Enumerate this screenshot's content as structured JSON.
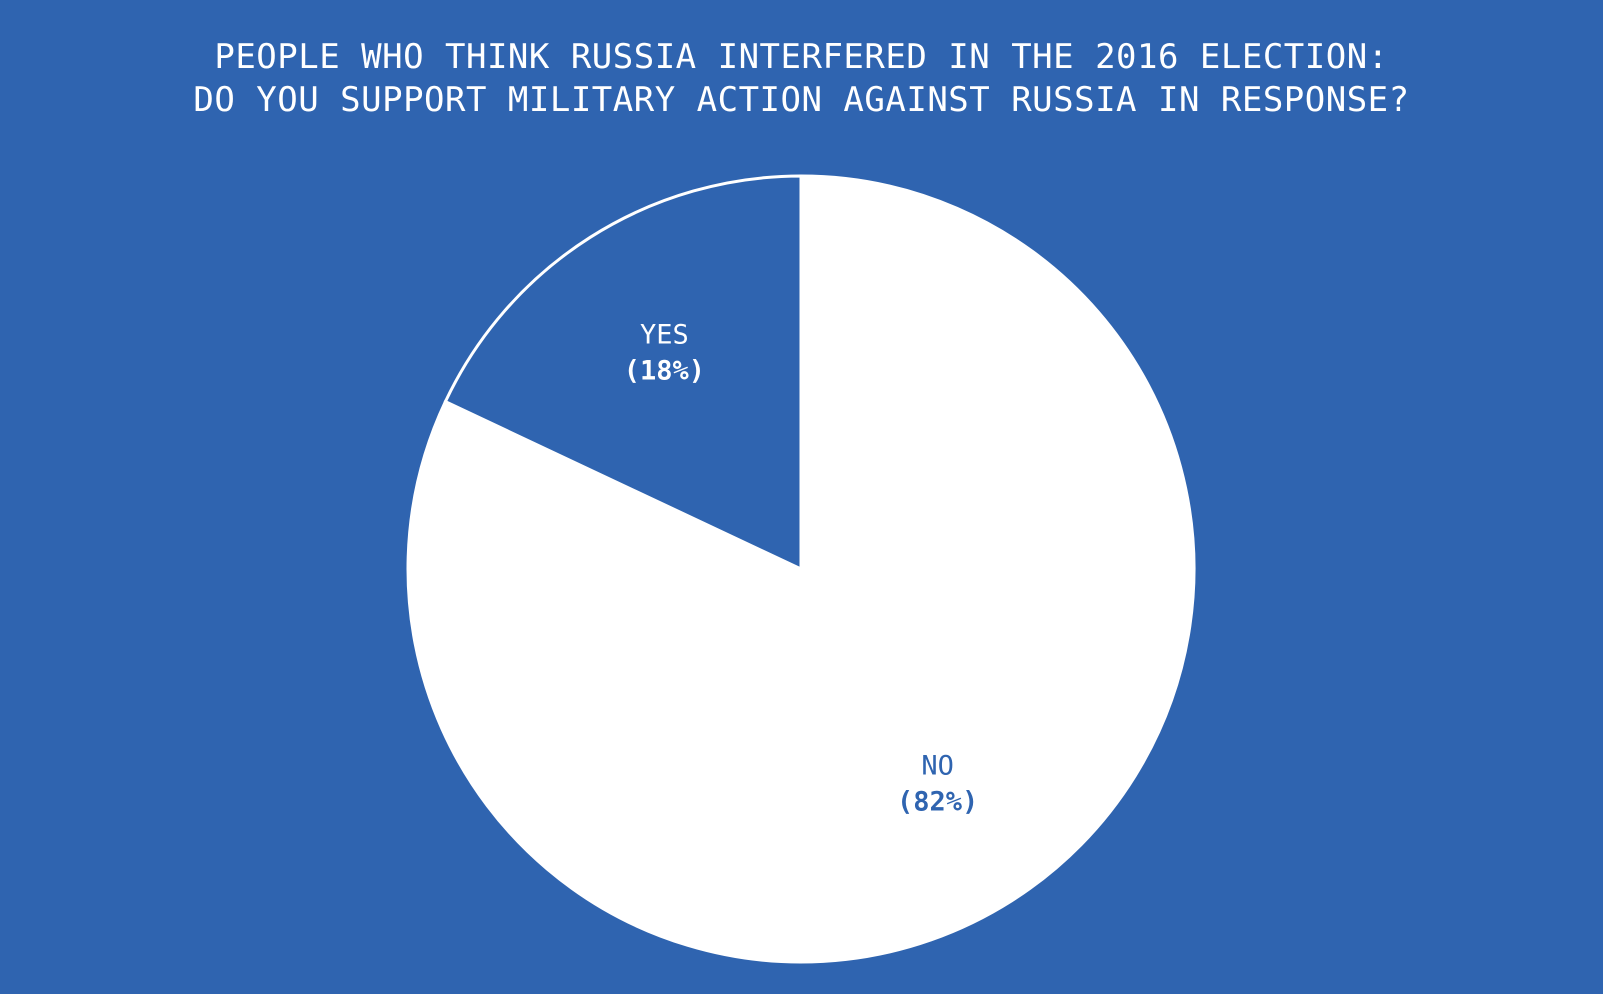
{
  "colors": {
    "background": "#2f64b0",
    "slice_yes": "#2f64b0",
    "slice_no": "#ffffff",
    "label_on_blue": "#ffffff",
    "label_on_white": "#2f64b0"
  },
  "chart_data": {
    "type": "pie",
    "title_lines": [
      "PEOPLE WHO THINK RUSSIA INTERFERED IN THE 2016 ELECTION:",
      "DO YOU SUPPORT MILITARY ACTION AGAINST RUSSIA IN RESPONSE?"
    ],
    "slices": [
      {
        "label": "YES",
        "value": 18,
        "value_text": "(18%)",
        "color": "#2f64b0"
      },
      {
        "label": "NO",
        "value": 82,
        "value_text": "(82%)",
        "color": "#ffffff"
      }
    ]
  }
}
